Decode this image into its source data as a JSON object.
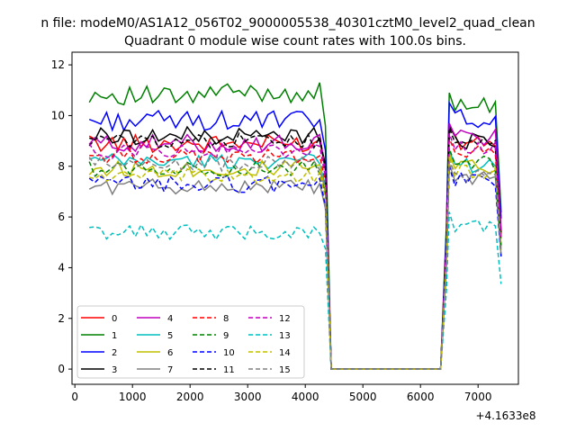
{
  "chart_data": {
    "type": "line",
    "suptitle": "n file: modeM0/AS1A12_056T02_9000005538_40301cztM0_level2_quad_clean",
    "title": "Quadrant 0 module wise count rates with 100.0s bins.",
    "xlabel": "",
    "ylabel": "",
    "x_offset_label": "+4.1633e8",
    "xlim": [
      -50,
      7700
    ],
    "ylim": [
      -0.6,
      12.5
    ],
    "xticks": [
      0,
      1000,
      2000,
      3000,
      4000,
      5000,
      6000,
      7000
    ],
    "yticks": [
      0,
      2,
      4,
      6,
      8,
      10,
      12
    ],
    "legend_position": "lower-left",
    "legend_columns": 4,
    "gap": {
      "start": 4450,
      "end": 6350
    },
    "x": {
      "first_start": 250,
      "first_end": 4300,
      "second_start": 6500,
      "second_end": 7400,
      "step": 100
    },
    "series": [
      {
        "name": "0",
        "color": "#ff0000",
        "dash": "solid",
        "level1": 8.9,
        "level2": 8.9,
        "amp": 0.35
      },
      {
        "name": "1",
        "color": "#008000",
        "dash": "solid",
        "level1": 10.9,
        "level2": 10.3,
        "amp": 0.4
      },
      {
        "name": "2",
        "color": "#0000ff",
        "dash": "solid",
        "level1": 9.8,
        "level2": 9.9,
        "amp": 0.4
      },
      {
        "name": "3",
        "color": "#000000",
        "dash": "solid",
        "level1": 9.2,
        "level2": 9.0,
        "amp": 0.35
      },
      {
        "name": "4",
        "color": "#bf00bf",
        "dash": "solid",
        "level1": 8.9,
        "level2": 9.1,
        "amp": 0.35
      },
      {
        "name": "5",
        "color": "#00bfbf",
        "dash": "solid",
        "level1": 8.2,
        "level2": 8.0,
        "amp": 0.3
      },
      {
        "name": "6",
        "color": "#bfbf00",
        "dash": "solid",
        "level1": 7.9,
        "level2": 7.9,
        "amp": 0.35
      },
      {
        "name": "7",
        "color": "#808080",
        "dash": "solid",
        "level1": 7.2,
        "level2": 7.5,
        "amp": 0.3
      },
      {
        "name": "8",
        "color": "#ff0000",
        "dash": "dashed",
        "level1": 8.4,
        "level2": 8.5,
        "amp": 0.3
      },
      {
        "name": "9",
        "color": "#008000",
        "dash": "dashed",
        "level1": 7.9,
        "level2": 8.1,
        "amp": 0.3
      },
      {
        "name": "10",
        "color": "#0000ff",
        "dash": "dashed",
        "level1": 7.3,
        "level2": 7.4,
        "amp": 0.35
      },
      {
        "name": "11",
        "color": "#000000",
        "dash": "dashed",
        "level1": 9.0,
        "level2": 8.9,
        "amp": 0.3
      },
      {
        "name": "12",
        "color": "#bf00bf",
        "dash": "dashed",
        "level1": 8.6,
        "level2": 8.7,
        "amp": 0.3
      },
      {
        "name": "13",
        "color": "#00bfbf",
        "dash": "dashed",
        "level1": 5.4,
        "level2": 5.6,
        "amp": 0.3
      },
      {
        "name": "14",
        "color": "#bfbf00",
        "dash": "dashed",
        "level1": 7.6,
        "level2": 7.8,
        "amp": 0.3
      },
      {
        "name": "15",
        "color": "#808080",
        "dash": "dashed",
        "level1": 8.1,
        "level2": 7.6,
        "amp": 0.3
      }
    ]
  }
}
